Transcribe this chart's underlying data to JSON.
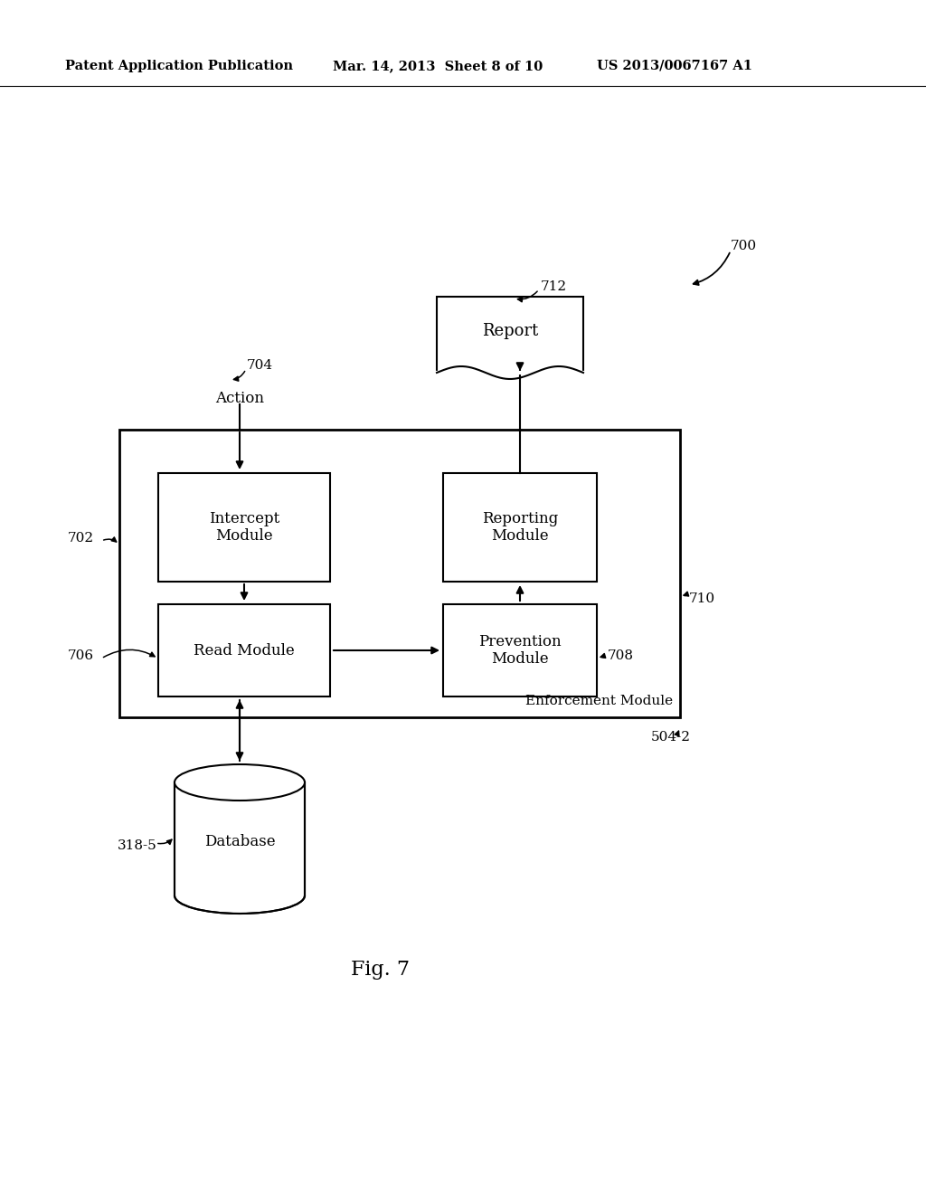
{
  "bg_color": "#ffffff",
  "header_left": "Patent Application Publication",
  "header_mid": "Mar. 14, 2013  Sheet 8 of 10",
  "header_right": "US 2013/0067167 A1",
  "fig_label": "Fig. 7",
  "label_700": "700",
  "label_704": "704",
  "label_702": "702",
  "label_706": "706",
  "label_708": "708",
  "label_710": "710",
  "label_712": "712",
  "label_3185": "318-5",
  "label_5042": "504-2",
  "label_action": "Action",
  "label_enforcement": "Enforcement Module",
  "box_intercept": "Intercept\nModule",
  "box_read": "Read Module",
  "box_prevention": "Prevention\nModule",
  "box_reporting": "Reporting\nModule",
  "box_report": "Report",
  "box_database": "Database",
  "line_color": "#000000",
  "text_color": "#000000"
}
